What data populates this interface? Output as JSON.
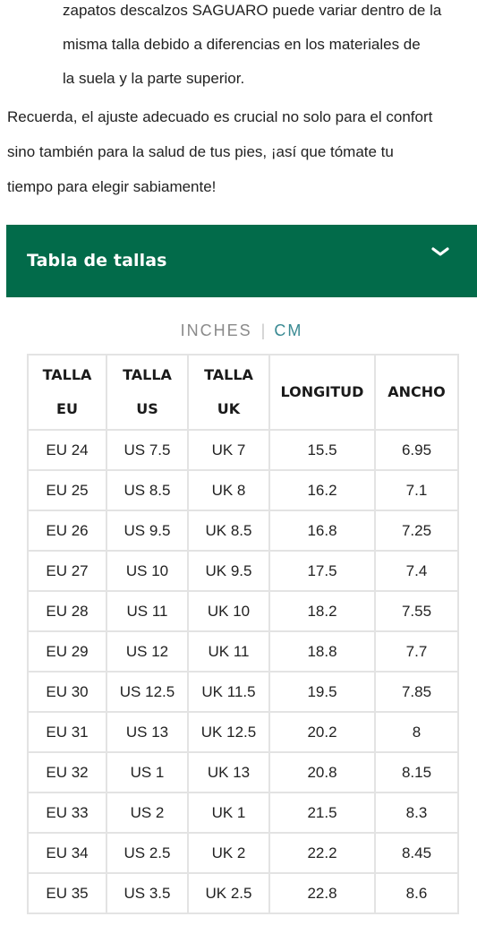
{
  "intro_indented_lines": [
    "zapatos descalzos SAGUARO puede variar dentro de la",
    "misma talla debido a diferencias en los materiales de",
    "la suela y la parte superior."
  ],
  "reminder_lines": [
    "Recuerda, el ajuste adecuado es crucial no solo para el confort",
    "sino también para la salud de tus pies, ¡así que tómate tu",
    "tiempo para elegir sabiamente!"
  ],
  "accordion": {
    "title": "Tabla de tallas",
    "icon": "chevron-down-icon",
    "background": "#026b4a"
  },
  "unit_toggle": {
    "inches_label": "INCHES",
    "separator": "|",
    "cm_label": "CM",
    "selected": "CM",
    "selected_color": "#3a8a93"
  },
  "table": {
    "headers": [
      [
        "TALLA",
        "EU"
      ],
      [
        "TALLA",
        "US"
      ],
      [
        "TALLA",
        "UK"
      ],
      [
        "LONGITUD"
      ],
      [
        "ANCHO"
      ]
    ],
    "rows": [
      [
        "EU 24",
        "US 7.5",
        "UK 7",
        "15.5",
        "6.95"
      ],
      [
        "EU 25",
        "US 8.5",
        "UK 8",
        "16.2",
        "7.1"
      ],
      [
        "EU 26",
        "US 9.5",
        "UK 8.5",
        "16.8",
        "7.25"
      ],
      [
        "EU 27",
        "US 10",
        "UK 9.5",
        "17.5",
        "7.4"
      ],
      [
        "EU 28",
        "US 11",
        "UK 10",
        "18.2",
        "7.55"
      ],
      [
        "EU 29",
        "US 12",
        "UK 11",
        "18.8",
        "7.7"
      ],
      [
        "EU 30",
        "US 12.5",
        "UK 11.5",
        "19.5",
        "7.85"
      ],
      [
        "EU 31",
        "US 13",
        "UK 12.5",
        "20.2",
        "8"
      ],
      [
        "EU 32",
        "US 1",
        "UK 13",
        "20.8",
        "8.15"
      ],
      [
        "EU 33",
        "US 2",
        "UK 1",
        "21.5",
        "8.3"
      ],
      [
        "EU 34",
        "US 2.5",
        "UK 2",
        "22.2",
        "8.45"
      ],
      [
        "EU 35",
        "US 3.5",
        "UK 2.5",
        "22.8",
        "8.6"
      ]
    ]
  }
}
